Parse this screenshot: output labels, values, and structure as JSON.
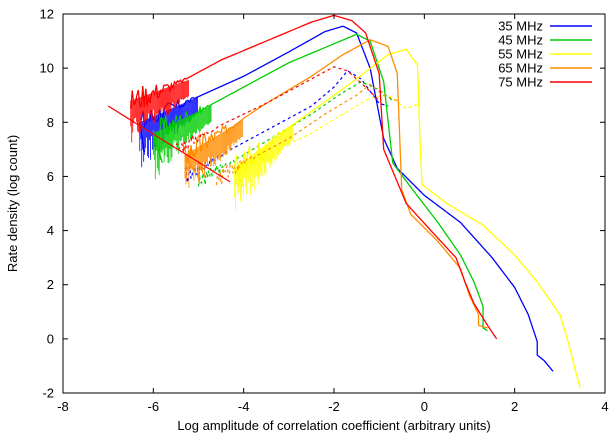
{
  "chart_data": {
    "type": "line",
    "title": "",
    "xlabel": "Log amplitude of correlation coefficient (arbitrary units)",
    "ylabel": "Rate density (log count)",
    "xlim": [
      -8,
      4
    ],
    "ylim": [
      -2,
      12
    ],
    "x_ticks": [
      -8,
      -6,
      -4,
      -2,
      0,
      2,
      4
    ],
    "y_ticks": [
      -2,
      0,
      2,
      4,
      6,
      8,
      10,
      12
    ],
    "x_tick_labels": [
      "-8",
      "-6",
      "-4",
      "-2",
      "0",
      "2",
      "4"
    ],
    "y_tick_labels": [
      "-2",
      "0",
      "2",
      "4",
      "6",
      "8",
      "10",
      "12"
    ],
    "grid": false,
    "legend_position": "top-right",
    "series": [
      {
        "name": "35 MHz",
        "color": "#0000ff",
        "solid": [
          [
            -6.3,
            8.0
          ],
          [
            -5.2,
            8.8
          ],
          [
            -4.0,
            9.7
          ],
          [
            -3.0,
            10.6
          ],
          [
            -2.2,
            11.35
          ],
          [
            -1.8,
            11.55
          ],
          [
            -1.5,
            11.3
          ],
          [
            -1.2,
            10.0
          ],
          [
            -0.9,
            7.4
          ],
          [
            -0.6,
            6.3
          ],
          [
            0.0,
            5.3
          ],
          [
            0.8,
            4.3
          ],
          [
            1.5,
            3.0
          ],
          [
            2.0,
            1.9
          ],
          [
            2.3,
            0.9
          ],
          [
            2.5,
            -0.1
          ],
          [
            2.5,
            -0.6
          ],
          [
            2.65,
            -0.8
          ],
          [
            2.85,
            -1.2
          ]
        ],
        "dashed": [
          [
            -5.3,
            6.0
          ],
          [
            -4.5,
            6.8
          ],
          [
            -3.5,
            7.7
          ],
          [
            -2.5,
            8.6
          ],
          [
            -2.0,
            9.3
          ],
          [
            -1.7,
            9.9
          ],
          [
            -1.4,
            9.6
          ],
          [
            -1.0,
            8.7
          ],
          [
            -0.8,
            8.6
          ]
        ],
        "diagonal": [
          [
            -6.3,
            8.0
          ],
          [
            -6.2,
            6.8
          ]
        ]
      },
      {
        "name": "45 MHz",
        "color": "#00cc00",
        "solid": [
          [
            -6.0,
            7.6
          ],
          [
            -5.0,
            8.4
          ],
          [
            -4.0,
            9.3
          ],
          [
            -3.0,
            10.2
          ],
          [
            -2.0,
            10.9
          ],
          [
            -1.5,
            11.25
          ],
          [
            -1.2,
            11.0
          ],
          [
            -0.9,
            9.5
          ],
          [
            -0.7,
            6.5
          ],
          [
            -0.3,
            5.6
          ],
          [
            0.3,
            4.3
          ],
          [
            0.8,
            3.1
          ],
          [
            1.1,
            2.1
          ],
          [
            1.3,
            1.2
          ],
          [
            1.3,
            0.4
          ],
          [
            1.4,
            0.3
          ]
        ],
        "dashed": [
          [
            -5.0,
            5.8
          ],
          [
            -4.5,
            6.3
          ],
          [
            -3.5,
            7.3
          ],
          [
            -2.5,
            8.3
          ],
          [
            -1.9,
            9.0
          ],
          [
            -1.4,
            9.5
          ],
          [
            -1.0,
            9.2
          ],
          [
            -0.7,
            8.8
          ]
        ],
        "diagonal": [
          [
            -6.0,
            7.6
          ],
          [
            -5.8,
            6.5
          ]
        ]
      },
      {
        "name": "55 MHz",
        "color": "#ffff00",
        "solid": [
          [
            -4.2,
            6.3
          ],
          [
            -3.5,
            7.2
          ],
          [
            -2.5,
            8.4
          ],
          [
            -1.5,
            9.6
          ],
          [
            -0.8,
            10.5
          ],
          [
            -0.4,
            10.7
          ],
          [
            -0.15,
            10.1
          ],
          [
            -0.1,
            7.5
          ],
          [
            -0.05,
            5.7
          ],
          [
            0.5,
            5.0
          ],
          [
            1.3,
            4.2
          ],
          [
            2.0,
            3.1
          ],
          [
            2.5,
            2.1
          ],
          [
            3.0,
            0.9
          ],
          [
            3.2,
            -0.2
          ],
          [
            3.35,
            -1.2
          ],
          [
            3.45,
            -1.8
          ]
        ],
        "dashed": [
          [
            -4.0,
            6.3
          ],
          [
            -3.5,
            6.8
          ],
          [
            -2.5,
            7.6
          ],
          [
            -1.8,
            8.3
          ],
          [
            -1.2,
            8.9
          ],
          [
            -0.8,
            9.0
          ],
          [
            -0.4,
            8.5
          ],
          [
            -0.1,
            8.7
          ]
        ],
        "diagonal": [
          [
            -4.2,
            6.3
          ],
          [
            -4.0,
            5.6
          ]
        ]
      },
      {
        "name": "65 MHz",
        "color": "#ff8c00",
        "solid": [
          [
            -5.3,
            6.8
          ],
          [
            -4.5,
            7.6
          ],
          [
            -3.5,
            8.7
          ],
          [
            -2.5,
            9.7
          ],
          [
            -1.8,
            10.5
          ],
          [
            -1.2,
            11.05
          ],
          [
            -0.8,
            10.8
          ],
          [
            -0.6,
            9.8
          ],
          [
            -0.5,
            5.5
          ],
          [
            -0.3,
            4.6
          ],
          [
            0.3,
            3.6
          ],
          [
            0.8,
            2.6
          ],
          [
            1.0,
            1.6
          ],
          [
            1.2,
            0.9
          ],
          [
            1.2,
            0.5
          ],
          [
            1.4,
            0.4
          ]
        ],
        "dashed": [
          [
            -4.6,
            5.9
          ],
          [
            -4.0,
            6.5
          ],
          [
            -3.0,
            7.4
          ],
          [
            -2.2,
            8.3
          ],
          [
            -1.5,
            9.0
          ],
          [
            -1.2,
            9.4
          ],
          [
            -0.9,
            9.0
          ],
          [
            -0.6,
            8.8
          ]
        ],
        "diagonal": [
          [
            -5.3,
            6.8
          ],
          [
            -5.1,
            6.2
          ]
        ]
      },
      {
        "name": "75 MHz",
        "color": "#ff0000",
        "solid": [
          [
            -6.5,
            8.8
          ],
          [
            -5.5,
            9.4
          ],
          [
            -4.5,
            10.3
          ],
          [
            -3.5,
            11.0
          ],
          [
            -2.5,
            11.7
          ],
          [
            -2.0,
            11.95
          ],
          [
            -1.6,
            11.75
          ],
          [
            -1.3,
            11.3
          ],
          [
            -1.0,
            9.8
          ],
          [
            -0.9,
            7.0
          ],
          [
            -0.4,
            5.0
          ],
          [
            0.2,
            3.9
          ],
          [
            0.7,
            3.0
          ],
          [
            0.9,
            2.1
          ],
          [
            1.1,
            1.3
          ],
          [
            1.4,
            0.5
          ],
          [
            1.6,
            0.0
          ]
        ],
        "dashed": [
          [
            -5.5,
            7.0
          ],
          [
            -4.5,
            7.9
          ],
          [
            -3.5,
            8.7
          ],
          [
            -2.5,
            9.6
          ],
          [
            -2.0,
            10.05
          ],
          [
            -1.7,
            9.9
          ],
          [
            -1.3,
            9.3
          ],
          [
            -1.0,
            8.8
          ]
        ],
        "diagonal": [
          [
            -7.0,
            8.6
          ],
          [
            -4.3,
            5.8
          ]
        ]
      }
    ]
  }
}
